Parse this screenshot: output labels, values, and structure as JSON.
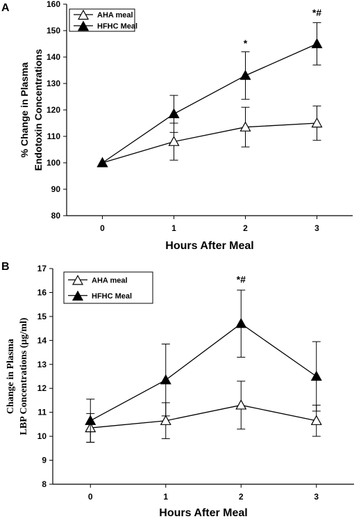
{
  "chart_data": [
    {
      "type": "line",
      "panel": "A",
      "xlabel": "Hours After Meal",
      "ylabel": [
        "% Change in Plasma",
        "Endotoxin Concentrations"
      ],
      "x": [
        0,
        1,
        2,
        3
      ],
      "xticks": [
        "0",
        "1",
        "2",
        "3"
      ],
      "xlim": [
        -0.5,
        3.5
      ],
      "ylim": [
        80,
        160
      ],
      "yticks": [
        80,
        90,
        100,
        110,
        120,
        130,
        140,
        150,
        160
      ],
      "legend_position": "top-left",
      "grid": false,
      "series": [
        {
          "name": "AHA meal",
          "marker": "open-triangle",
          "values": [
            100,
            108,
            113.5,
            115
          ],
          "errors": [
            0,
            7,
            7.5,
            6.5
          ]
        },
        {
          "name": "HFHC Meal",
          "marker": "filled-triangle",
          "values": [
            100,
            118.5,
            133,
            145
          ],
          "errors": [
            0,
            7,
            9,
            8
          ]
        }
      ],
      "annotations": [
        {
          "x": 2,
          "y": 144,
          "text": "*"
        },
        {
          "x": 3,
          "y": 155.5,
          "text": "*#"
        }
      ]
    },
    {
      "type": "line",
      "panel": "B",
      "xlabel": "Hours After Meal",
      "ylabel": [
        "Change in Plasma",
        "LBP Concentrations (μg/ml)"
      ],
      "x": [
        0,
        1,
        2,
        3
      ],
      "xticks": [
        "0",
        "1",
        "2",
        "3"
      ],
      "xlim": [
        -0.5,
        3.5
      ],
      "ylim": [
        8,
        17
      ],
      "yticks": [
        8,
        9,
        10,
        11,
        12,
        13,
        14,
        15,
        16,
        17
      ],
      "legend_position": "top-left",
      "grid": false,
      "series": [
        {
          "name": "AHA meal",
          "marker": "open-triangle",
          "values": [
            10.35,
            10.65,
            11.3,
            10.65
          ],
          "errors": [
            0.6,
            0.75,
            1.0,
            0.65
          ]
        },
        {
          "name": "HFHC Meal",
          "marker": "filled-triangle",
          "values": [
            10.65,
            12.35,
            14.7,
            12.5
          ],
          "errors": [
            0.9,
            1.5,
            1.4,
            1.45
          ]
        }
      ],
      "annotations": [
        {
          "x": 2,
          "y": 16.4,
          "text": "*#"
        }
      ]
    }
  ]
}
